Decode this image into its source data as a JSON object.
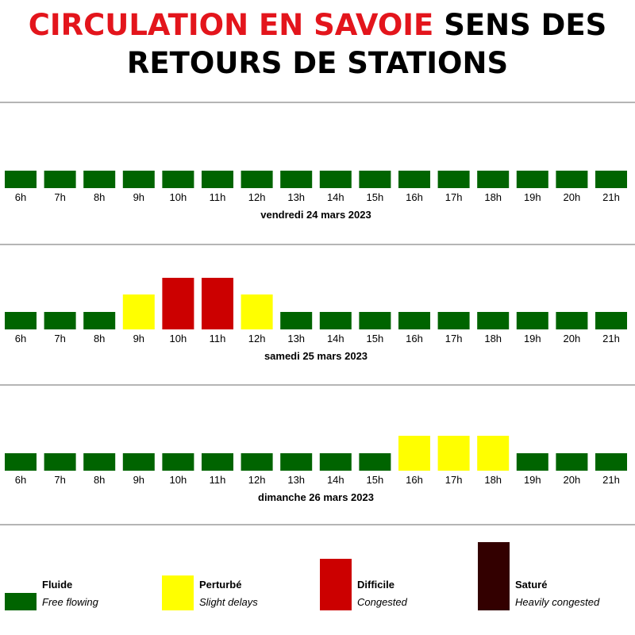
{
  "title": {
    "red_part": "CIRCULATION EN SAVOIE",
    "black_part": "SENS DES RETOURS DE STATIONS"
  },
  "chart_data": {
    "type": "bar",
    "categories": [
      "6h",
      "7h",
      "8h",
      "9h",
      "10h",
      "11h",
      "12h",
      "13h",
      "14h",
      "15h",
      "16h",
      "17h",
      "18h",
      "19h",
      "20h",
      "21h"
    ],
    "levels": [
      {
        "key": "fluide",
        "value": 1,
        "label_fr": "Fluide",
        "label_en": "Free flowing",
        "color": "#006400"
      },
      {
        "key": "perturbe",
        "value": 2,
        "label_fr": "Perturbé",
        "label_en": "Slight delays",
        "color": "#ffff00"
      },
      {
        "key": "difficile",
        "value": 3,
        "label_fr": "Difficile",
        "label_en": "Congested",
        "color": "#cc0000"
      },
      {
        "key": "sature",
        "value": 4,
        "label_fr": "Saturé",
        "label_en": "Heavily congested",
        "color": "#330000"
      }
    ],
    "days": [
      {
        "label": "vendredi 24 mars 2023",
        "values": [
          1,
          1,
          1,
          1,
          1,
          1,
          1,
          1,
          1,
          1,
          1,
          1,
          1,
          1,
          1,
          1
        ]
      },
      {
        "label": "samedi 25 mars 2023",
        "values": [
          1,
          1,
          1,
          2,
          3,
          3,
          2,
          1,
          1,
          1,
          1,
          1,
          1,
          1,
          1,
          1
        ]
      },
      {
        "label": "dimanche 26 mars 2023",
        "values": [
          1,
          1,
          1,
          1,
          1,
          1,
          1,
          1,
          1,
          1,
          2,
          2,
          2,
          1,
          1,
          1
        ]
      }
    ]
  }
}
